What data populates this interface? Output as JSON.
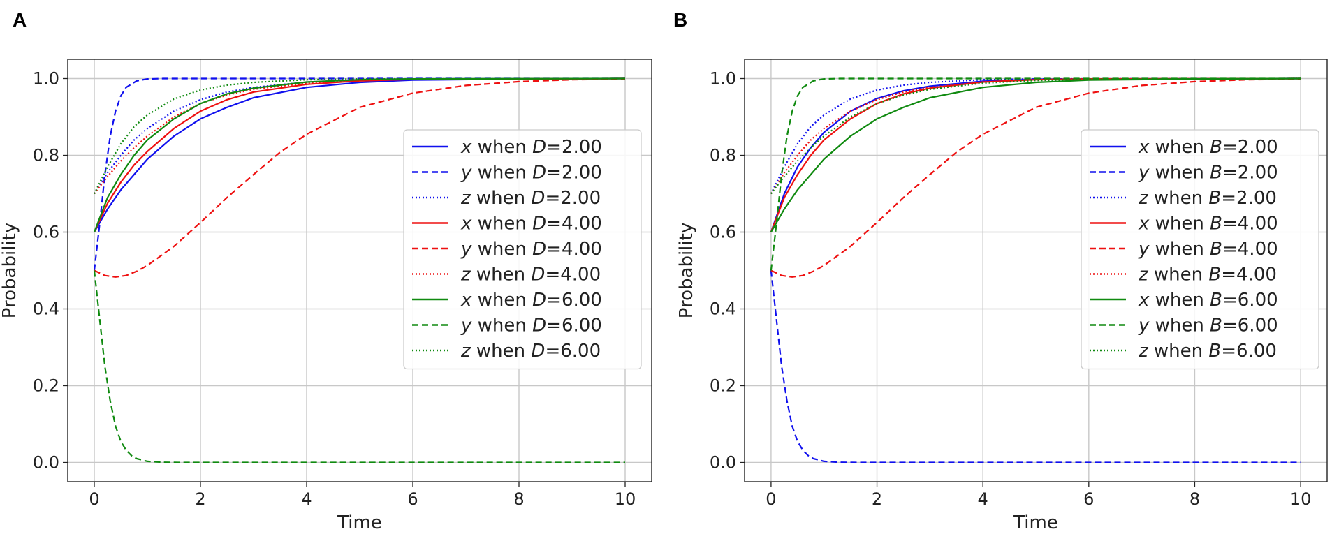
{
  "chart_data": [
    {
      "panel_label": "A",
      "type": "line",
      "xlabel": "Time",
      "ylabel": "Probability",
      "xlim": [
        -0.5,
        10.5
      ],
      "ylim": [
        -0.05,
        1.05
      ],
      "xticks": [
        0,
        2,
        4,
        6,
        8,
        10
      ],
      "yticks": [
        0.0,
        0.2,
        0.4,
        0.6,
        0.8,
        1.0
      ],
      "xtick_labels": [
        "0",
        "2",
        "4",
        "6",
        "8",
        "10"
      ],
      "ytick_labels": [
        "0.0",
        "0.2",
        "0.4",
        "0.6",
        "0.8",
        "1.0"
      ],
      "grid": true,
      "legend_position": "center-right",
      "series": [
        {
          "var": "x",
          "rest": " when ",
          "param": "D",
          "value": "=2.00",
          "color": "#1010ee",
          "style": "solid",
          "x": [
            0,
            0.25,
            0.5,
            0.75,
            1,
            1.5,
            2,
            2.5,
            3,
            4,
            5,
            6,
            8,
            10
          ],
          "y": [
            0.6,
            0.66,
            0.71,
            0.75,
            0.79,
            0.85,
            0.895,
            0.925,
            0.95,
            0.977,
            0.99,
            0.996,
            0.999,
            1.0
          ]
        },
        {
          "var": "y",
          "rest": " when ",
          "param": "D",
          "value": "=2.00",
          "color": "#1010ee",
          "style": "dashed",
          "x": [
            0,
            0.1,
            0.2,
            0.3,
            0.4,
            0.5,
            0.6,
            0.8,
            1,
            1.3,
            1.6,
            2,
            10
          ],
          "y": [
            0.5,
            0.62,
            0.75,
            0.85,
            0.915,
            0.955,
            0.977,
            0.994,
            0.999,
            1.0,
            1.0,
            1.0,
            1.0
          ]
        },
        {
          "var": "z",
          "rest": " when ",
          "param": "D",
          "value": "=2.00",
          "color": "#1010ee",
          "style": "dotted",
          "x": [
            0,
            0.25,
            0.5,
            0.75,
            1,
            1.5,
            2,
            2.5,
            3,
            4,
            5,
            6,
            10
          ],
          "y": [
            0.7,
            0.755,
            0.8,
            0.84,
            0.87,
            0.915,
            0.945,
            0.965,
            0.977,
            0.991,
            0.997,
            0.999,
            1.0
          ]
        },
        {
          "var": "x",
          "rest": " when ",
          "param": "D",
          "value": "=4.00",
          "color": "#ee1010",
          "style": "solid",
          "x": [
            0,
            0.25,
            0.5,
            0.75,
            1,
            1.5,
            2,
            2.5,
            3,
            4,
            5,
            6,
            10
          ],
          "y": [
            0.6,
            0.675,
            0.73,
            0.775,
            0.81,
            0.87,
            0.915,
            0.945,
            0.965,
            0.985,
            0.994,
            0.998,
            1.0
          ]
        },
        {
          "var": "y",
          "rest": " when ",
          "param": "D",
          "value": "=4.00",
          "color": "#ee1010",
          "style": "dashed",
          "x": [
            0,
            0.2,
            0.4,
            0.6,
            0.8,
            1,
            1.5,
            2,
            2.5,
            3,
            3.5,
            4,
            5,
            6,
            7,
            8,
            9,
            10
          ],
          "y": [
            0.5,
            0.487,
            0.483,
            0.487,
            0.498,
            0.513,
            0.563,
            0.625,
            0.69,
            0.75,
            0.808,
            0.855,
            0.925,
            0.962,
            0.982,
            0.992,
            0.997,
            0.999
          ]
        },
        {
          "var": "z",
          "rest": " when ",
          "param": "D",
          "value": "=4.00",
          "color": "#ee1010",
          "style": "dotted",
          "x": [
            0,
            0.25,
            0.5,
            0.75,
            1,
            1.5,
            2,
            2.5,
            3,
            4,
            5,
            6,
            10
          ],
          "y": [
            0.7,
            0.745,
            0.785,
            0.82,
            0.85,
            0.9,
            0.935,
            0.957,
            0.972,
            0.988,
            0.995,
            0.998,
            1.0
          ]
        },
        {
          "var": "x",
          "rest": " when ",
          "param": "D",
          "value": "=6.00",
          "color": "#108a10",
          "style": "solid",
          "x": [
            0,
            0.25,
            0.5,
            0.75,
            1,
            1.5,
            2,
            2.5,
            3,
            4,
            5,
            6,
            10
          ],
          "y": [
            0.6,
            0.69,
            0.75,
            0.8,
            0.84,
            0.895,
            0.935,
            0.96,
            0.975,
            0.991,
            0.997,
            0.999,
            1.0
          ]
        },
        {
          "var": "y",
          "rest": " when ",
          "param": "D",
          "value": "=6.00",
          "color": "#108a10",
          "style": "dashed",
          "x": [
            0,
            0.1,
            0.2,
            0.3,
            0.4,
            0.5,
            0.6,
            0.7,
            0.8,
            1,
            1.3,
            1.6,
            2,
            10
          ],
          "y": [
            0.5,
            0.375,
            0.25,
            0.16,
            0.095,
            0.055,
            0.032,
            0.018,
            0.01,
            0.003,
            0.0005,
            0,
            0,
            0
          ]
        },
        {
          "var": "z",
          "rest": " when ",
          "param": "D",
          "value": "=6.00",
          "color": "#108a10",
          "style": "dotted",
          "x": [
            0,
            0.25,
            0.5,
            0.75,
            1,
            1.5,
            2,
            2.5,
            3,
            4,
            5,
            10
          ],
          "y": [
            0.7,
            0.77,
            0.83,
            0.875,
            0.905,
            0.947,
            0.97,
            0.983,
            0.99,
            0.997,
            0.999,
            1.0
          ]
        }
      ]
    },
    {
      "panel_label": "B",
      "type": "line",
      "xlabel": "Time",
      "ylabel": "Probability",
      "xlim": [
        -0.5,
        10.5
      ],
      "ylim": [
        -0.05,
        1.05
      ],
      "xticks": [
        0,
        2,
        4,
        6,
        8,
        10
      ],
      "yticks": [
        0.0,
        0.2,
        0.4,
        0.6,
        0.8,
        1.0
      ],
      "xtick_labels": [
        "0",
        "2",
        "4",
        "6",
        "8",
        "10"
      ],
      "ytick_labels": [
        "0.0",
        "0.2",
        "0.4",
        "0.6",
        "0.8",
        "1.0"
      ],
      "grid": true,
      "legend_position": "center-right",
      "series": [
        {
          "var": "x",
          "rest": " when ",
          "param": "B",
          "value": "=2.00",
          "color": "#1010ee",
          "style": "solid",
          "x": [
            0,
            0.25,
            0.5,
            0.75,
            1,
            1.5,
            2,
            2.5,
            3,
            4,
            5,
            6,
            10
          ],
          "y": [
            0.6,
            0.7,
            0.77,
            0.82,
            0.86,
            0.915,
            0.948,
            0.968,
            0.98,
            0.993,
            0.998,
            0.999,
            1.0
          ]
        },
        {
          "var": "y",
          "rest": " when ",
          "param": "B",
          "value": "=2.00",
          "color": "#1010ee",
          "style": "dashed",
          "x": [
            0,
            0.1,
            0.2,
            0.3,
            0.4,
            0.5,
            0.6,
            0.7,
            0.8,
            1,
            1.3,
            1.6,
            2,
            10
          ],
          "y": [
            0.5,
            0.375,
            0.25,
            0.16,
            0.095,
            0.055,
            0.032,
            0.018,
            0.01,
            0.003,
            0.0005,
            0,
            0,
            0
          ]
        },
        {
          "var": "z",
          "rest": " when ",
          "param": "B",
          "value": "=2.00",
          "color": "#1010ee",
          "style": "dotted",
          "x": [
            0,
            0.25,
            0.5,
            0.75,
            1,
            1.5,
            2,
            2.5,
            3,
            4,
            5,
            10
          ],
          "y": [
            0.7,
            0.77,
            0.83,
            0.875,
            0.905,
            0.947,
            0.97,
            0.983,
            0.99,
            0.997,
            0.999,
            1.0
          ]
        },
        {
          "var": "x",
          "rest": " when ",
          "param": "B",
          "value": "=4.00",
          "color": "#ee1010",
          "style": "solid",
          "x": [
            0,
            0.25,
            0.5,
            0.75,
            1,
            1.5,
            2,
            2.5,
            3,
            4,
            5,
            6,
            10
          ],
          "y": [
            0.6,
            0.69,
            0.75,
            0.8,
            0.84,
            0.895,
            0.935,
            0.96,
            0.975,
            0.991,
            0.997,
            0.999,
            1.0
          ]
        },
        {
          "var": "y",
          "rest": " when ",
          "param": "B",
          "value": "=4.00",
          "color": "#ee1010",
          "style": "dashed",
          "x": [
            0,
            0.2,
            0.4,
            0.6,
            0.8,
            1,
            1.5,
            2,
            2.5,
            3,
            3.5,
            4,
            5,
            6,
            7,
            8,
            9,
            10
          ],
          "y": [
            0.5,
            0.487,
            0.483,
            0.487,
            0.498,
            0.513,
            0.563,
            0.625,
            0.69,
            0.75,
            0.808,
            0.855,
            0.925,
            0.962,
            0.982,
            0.992,
            0.997,
            0.999
          ]
        },
        {
          "var": "z",
          "rest": " when ",
          "param": "B",
          "value": "=4.00",
          "color": "#ee1010",
          "style": "dotted",
          "x": [
            0,
            0.25,
            0.5,
            0.75,
            1,
            1.5,
            2,
            2.5,
            3,
            4,
            5,
            6,
            10
          ],
          "y": [
            0.7,
            0.755,
            0.8,
            0.84,
            0.87,
            0.915,
            0.945,
            0.965,
            0.977,
            0.991,
            0.997,
            0.999,
            1.0
          ]
        },
        {
          "var": "x",
          "rest": " when ",
          "param": "B",
          "value": "=6.00",
          "color": "#108a10",
          "style": "solid",
          "x": [
            0,
            0.25,
            0.5,
            0.75,
            1,
            1.5,
            2,
            2.5,
            3,
            4,
            5,
            6,
            8,
            10
          ],
          "y": [
            0.6,
            0.66,
            0.71,
            0.75,
            0.79,
            0.85,
            0.895,
            0.925,
            0.95,
            0.977,
            0.99,
            0.996,
            0.999,
            1.0
          ]
        },
        {
          "var": "y",
          "rest": " when ",
          "param": "B",
          "value": "=6.00",
          "color": "#108a10",
          "style": "dashed",
          "x": [
            0,
            0.1,
            0.2,
            0.3,
            0.4,
            0.5,
            0.6,
            0.8,
            1,
            1.3,
            1.6,
            2,
            10
          ],
          "y": [
            0.5,
            0.62,
            0.75,
            0.85,
            0.915,
            0.955,
            0.977,
            0.994,
            0.999,
            1.0,
            1.0,
            1.0,
            1.0
          ]
        },
        {
          "var": "z",
          "rest": " when ",
          "param": "B",
          "value": "=6.00",
          "color": "#108a10",
          "style": "dotted",
          "x": [
            0,
            0.25,
            0.5,
            0.75,
            1,
            1.5,
            2,
            2.5,
            3,
            4,
            5,
            6,
            10
          ],
          "y": [
            0.7,
            0.745,
            0.785,
            0.82,
            0.85,
            0.9,
            0.935,
            0.957,
            0.972,
            0.988,
            0.995,
            0.998,
            1.0
          ]
        }
      ]
    }
  ]
}
